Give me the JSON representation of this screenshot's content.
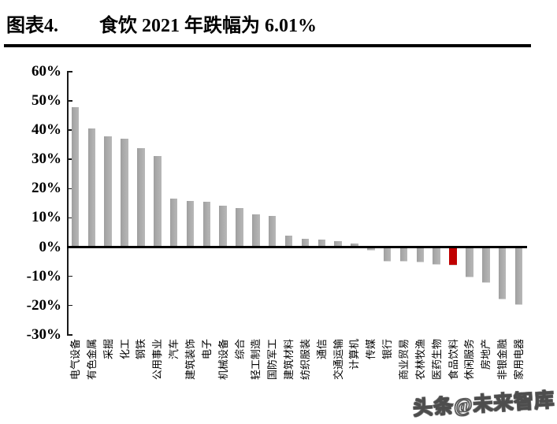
{
  "header": {
    "figure_label": "图表4.",
    "title": "食饮 2021 年跌幅为 6.01%"
  },
  "watermark": {
    "text": "头条@未来智库"
  },
  "colors": {
    "bar": "#a9a9a9",
    "highlight": "#c00000",
    "axis": "#000000"
  },
  "chart_data": {
    "type": "bar",
    "title": "食饮 2021 年跌幅为 6.01%",
    "xlabel": "",
    "ylabel": "",
    "unit": "%",
    "ylim": [
      -30,
      60
    ],
    "grid": false,
    "legend": "none",
    "y_tick_labels": [
      "60%",
      "50%",
      "40%",
      "30%",
      "20%",
      "10%",
      "0%",
      "-10%",
      "-20%",
      "-30%"
    ],
    "y_tick_values": [
      60,
      50,
      40,
      30,
      20,
      10,
      0,
      -10,
      -20,
      -30
    ],
    "categories": [
      "电气设备",
      "有色金属",
      "采掘",
      "化工",
      "钢铁",
      "公用事业",
      "汽车",
      "建筑装饰",
      "电子",
      "机械设备",
      "综合",
      "轻工制造",
      "国防军工",
      "建筑材料",
      "纺织服装",
      "通信",
      "交通运输",
      "计算机",
      "传媒",
      "银行",
      "商业贸易",
      "农林牧渔",
      "医药生物",
      "食品饮料",
      "休闲服务",
      "房地产",
      "非银金融",
      "家用电器"
    ],
    "values": [
      47.9,
      40.5,
      38.0,
      37.0,
      33.9,
      31.0,
      16.7,
      15.8,
      15.5,
      14.2,
      13.3,
      11.1,
      10.7,
      3.9,
      2.8,
      2.5,
      1.9,
      1.2,
      -1.0,
      -4.6,
      -4.8,
      -5.1,
      -5.7,
      -6.01,
      -10.0,
      -11.9,
      -17.7,
      -19.5
    ],
    "highlight_index": 23,
    "highlight_category": "食品饮料",
    "highlight_value": -6.01
  }
}
